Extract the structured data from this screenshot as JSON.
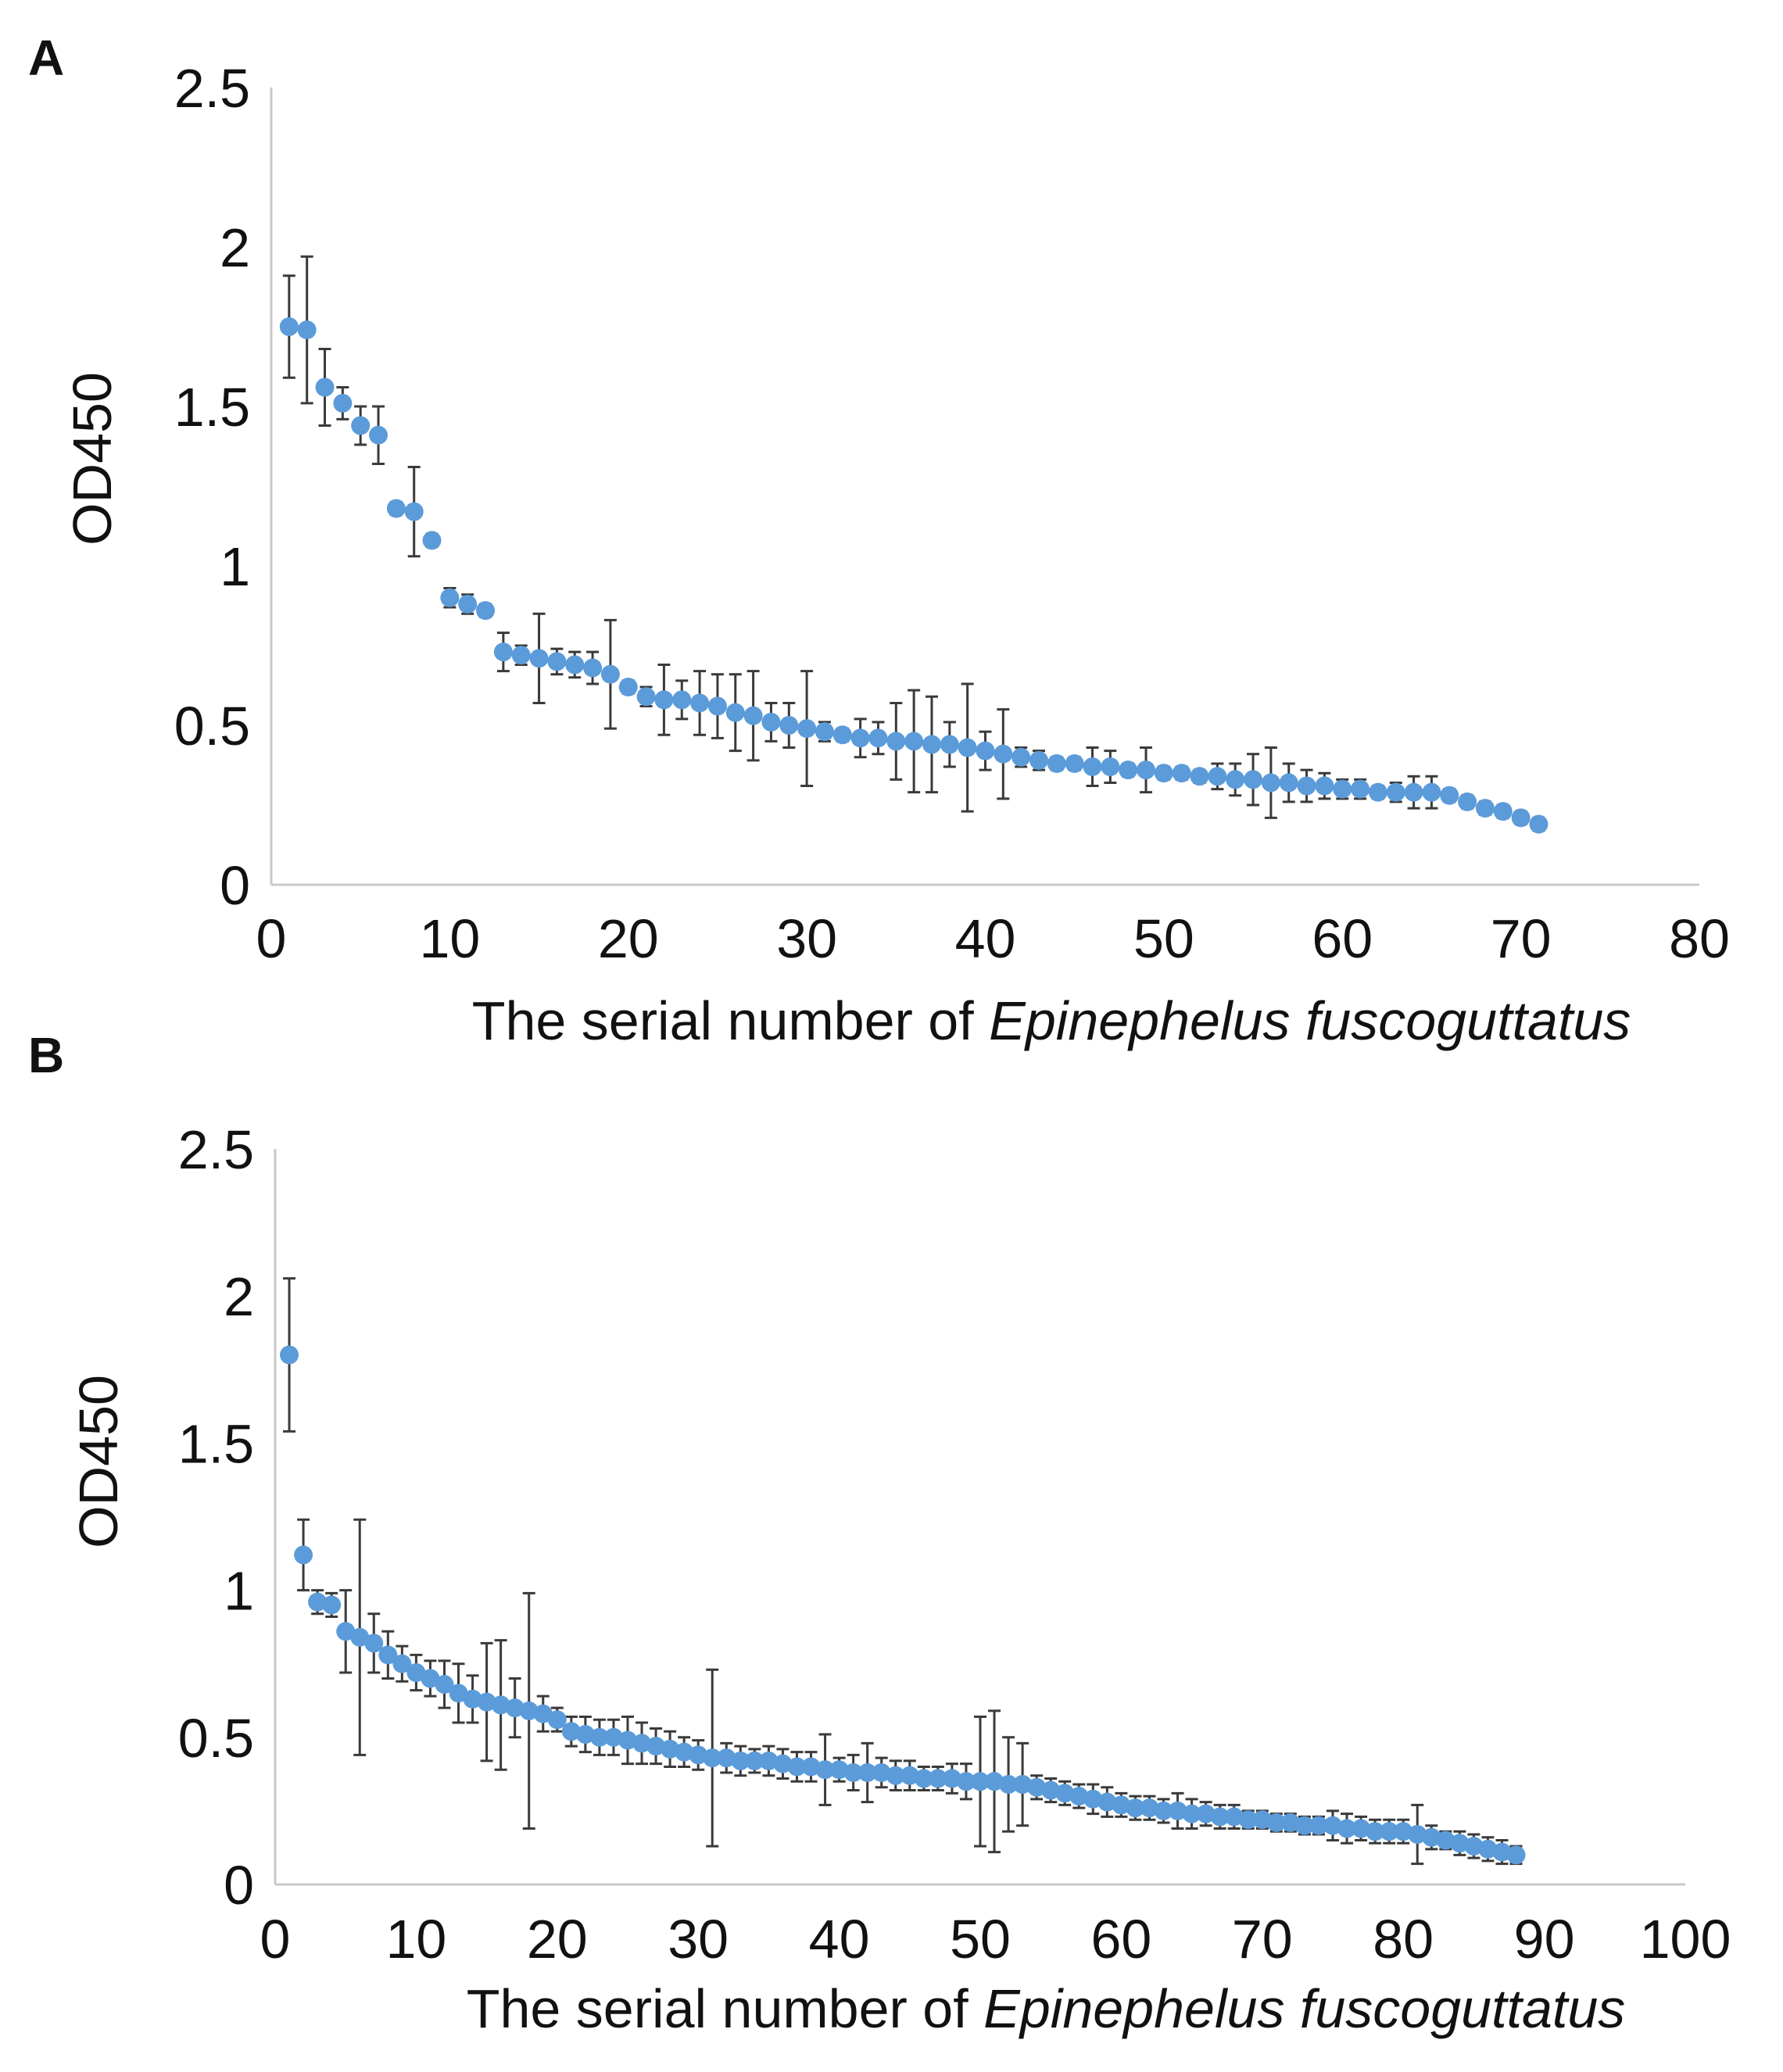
{
  "chart_data": [
    {
      "panel": "A",
      "type": "scatter",
      "xlabel_prefix": "The serial number of ",
      "xlabel_italic": "Epinephelus fuscoguttatus",
      "ylabel": "OD450",
      "xlim": [
        0,
        80
      ],
      "ylim": [
        0,
        2.5
      ],
      "x_ticks": [
        "0",
        "10",
        "20",
        "30",
        "40",
        "50",
        "60",
        "70",
        "80"
      ],
      "y_ticks": [
        "0",
        "0.5",
        "1",
        "1.5",
        "2",
        "2.5"
      ],
      "series": [
        {
          "name": "OD450",
          "color": "#5b9bd9",
          "values": [
            1.75,
            1.74,
            1.56,
            1.51,
            1.44,
            1.41,
            1.18,
            1.17,
            1.08,
            0.9,
            0.88,
            0.86,
            0.73,
            0.72,
            0.71,
            0.7,
            0.69,
            0.68,
            0.66,
            0.62,
            0.59,
            0.58,
            0.58,
            0.57,
            0.56,
            0.54,
            0.53,
            0.51,
            0.5,
            0.49,
            0.48,
            0.47,
            0.46,
            0.46,
            0.45,
            0.45,
            0.44,
            0.44,
            0.43,
            0.42,
            0.41,
            0.4,
            0.39,
            0.38,
            0.38,
            0.37,
            0.37,
            0.36,
            0.36,
            0.35,
            0.35,
            0.34,
            0.34,
            0.33,
            0.33,
            0.32,
            0.32,
            0.31,
            0.31,
            0.3,
            0.3,
            0.29,
            0.29,
            0.29,
            0.29,
            0.28,
            0.26,
            0.24,
            0.23,
            0.21,
            0.19
          ],
          "errors": [
            0.16,
            0.23,
            0.12,
            0.05,
            0.06,
            0.09,
            0.02,
            0.14,
            0.02,
            0.03,
            0.03,
            0.02,
            0.06,
            0.03,
            0.14,
            0.04,
            0.04,
            0.05,
            0.17,
            0.02,
            0.03,
            0.11,
            0.06,
            0.1,
            0.1,
            0.12,
            0.14,
            0.06,
            0.07,
            0.18,
            0.03,
            0.02,
            0.06,
            0.05,
            0.12,
            0.16,
            0.15,
            0.07,
            0.2,
            0.06,
            0.14,
            0.03,
            0.03,
            0.02,
            0.02,
            0.06,
            0.05,
            0.02,
            0.07,
            0.02,
            0.02,
            0.02,
            0.04,
            0.05,
            0.08,
            0.11,
            0.06,
            0.05,
            0.04,
            0.03,
            0.03,
            0.02,
            0.03,
            0.05,
            0.05,
            0.02,
            0.02,
            0.02,
            0.02,
            0.02,
            0.02
          ]
        }
      ]
    },
    {
      "panel": "B",
      "type": "scatter",
      "xlabel_prefix": "The serial number of ",
      "xlabel_italic": "Epinephelus fuscoguttatus",
      "ylabel": "OD450",
      "xlim": [
        0,
        100
      ],
      "ylim": [
        0,
        2.5
      ],
      "x_ticks": [
        "0",
        "10",
        "20",
        "30",
        "40",
        "50",
        "60",
        "70",
        "80",
        "90",
        "100"
      ],
      "y_ticks": [
        "0",
        "0.5",
        "1",
        "1.5",
        "2",
        "2.5"
      ],
      "series": [
        {
          "name": "OD450",
          "color": "#5b9bd9",
          "values": [
            1.8,
            1.12,
            0.96,
            0.95,
            0.86,
            0.84,
            0.82,
            0.78,
            0.75,
            0.72,
            0.7,
            0.68,
            0.65,
            0.63,
            0.62,
            0.61,
            0.6,
            0.59,
            0.58,
            0.56,
            0.52,
            0.51,
            0.5,
            0.5,
            0.49,
            0.48,
            0.47,
            0.46,
            0.45,
            0.44,
            0.43,
            0.43,
            0.42,
            0.42,
            0.42,
            0.41,
            0.4,
            0.4,
            0.39,
            0.39,
            0.38,
            0.38,
            0.38,
            0.37,
            0.37,
            0.36,
            0.36,
            0.36,
            0.35,
            0.35,
            0.35,
            0.34,
            0.34,
            0.33,
            0.32,
            0.31,
            0.3,
            0.29,
            0.28,
            0.27,
            0.26,
            0.26,
            0.25,
            0.25,
            0.24,
            0.24,
            0.23,
            0.23,
            0.22,
            0.22,
            0.21,
            0.21,
            0.2,
            0.2,
            0.2,
            0.19,
            0.19,
            0.18,
            0.18,
            0.18,
            0.17,
            0.16,
            0.15,
            0.14,
            0.13,
            0.12,
            0.11,
            0.1
          ],
          "errors": [
            0.26,
            0.12,
            0.04,
            0.04,
            0.14,
            0.4,
            0.1,
            0.08,
            0.06,
            0.06,
            0.06,
            0.08,
            0.1,
            0.08,
            0.2,
            0.22,
            0.1,
            0.4,
            0.06,
            0.04,
            0.05,
            0.06,
            0.06,
            0.06,
            0.08,
            0.07,
            0.06,
            0.06,
            0.05,
            0.05,
            0.3,
            0.05,
            0.05,
            0.04,
            0.05,
            0.05,
            0.05,
            0.05,
            0.12,
            0.04,
            0.06,
            0.1,
            0.05,
            0.05,
            0.05,
            0.04,
            0.04,
            0.05,
            0.06,
            0.22,
            0.24,
            0.16,
            0.14,
            0.04,
            0.04,
            0.04,
            0.04,
            0.05,
            0.05,
            0.04,
            0.04,
            0.04,
            0.04,
            0.06,
            0.05,
            0.04,
            0.04,
            0.04,
            0.03,
            0.03,
            0.03,
            0.03,
            0.03,
            0.03,
            0.05,
            0.05,
            0.04,
            0.04,
            0.04,
            0.04,
            0.1,
            0.04,
            0.03,
            0.04,
            0.04,
            0.04,
            0.04,
            0.03
          ]
        }
      ]
    }
  ]
}
